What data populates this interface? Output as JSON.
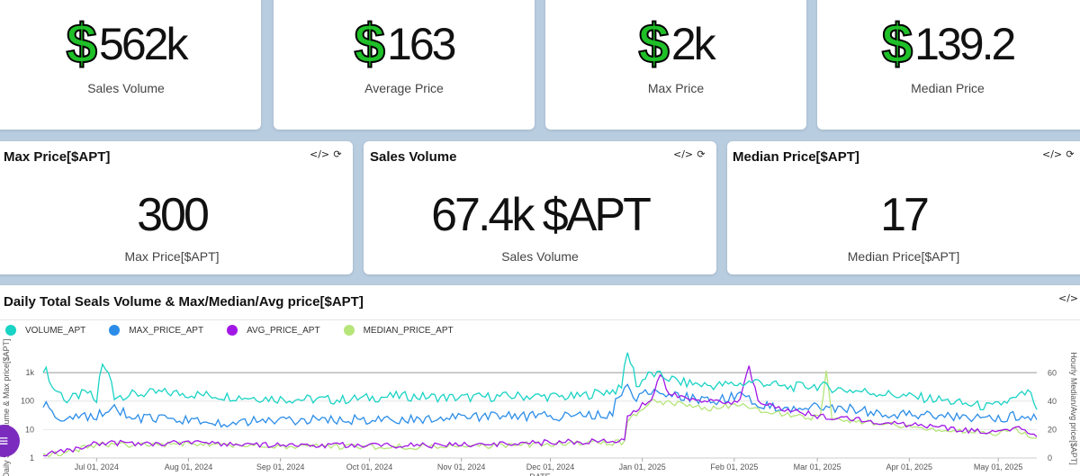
{
  "kpis": [
    {
      "currency": "$",
      "value": "562k",
      "label": "Sales Volume"
    },
    {
      "currency": "$",
      "value": "163",
      "label": "Average Price"
    },
    {
      "currency": "$",
      "value": "2k",
      "label": "Max Price"
    },
    {
      "currency": "$",
      "value": "139.2",
      "label": "Median Price"
    }
  ],
  "cards": [
    {
      "title": "Max Price[$APT]",
      "value": "300",
      "label": "Max Price[$APT]"
    },
    {
      "title": "Sales Volume",
      "value": "67.4k $APT",
      "label": "Sales Volume"
    },
    {
      "title": "Median Price[$APT]",
      "value": "17",
      "label": "Median Price[$APT]"
    }
  ],
  "icons": {
    "code": "</>",
    "refresh": "⟳"
  },
  "colors": {
    "dollar": "#1fbf28",
    "volume": "#19d3c5",
    "max": "#2b8de8",
    "avg": "#a117e6",
    "median": "#b6e57a"
  },
  "chart_data": {
    "type": "line",
    "title": "Daily Total Seals Volume & Max/Median/Avg price[$APT]",
    "xlabel": "DATE",
    "ylabel_left": "Daily Sales Volume & Max price[$APT]",
    "ylabel_right": "Hourly Median/Avg price[$APT]",
    "y_left_scale": "log",
    "y_left_ticks": [
      "1",
      "10",
      "100",
      "1k"
    ],
    "y_left_range": [
      1,
      3000
    ],
    "y_right_ticks": [
      "0",
      "20",
      "40",
      "60"
    ],
    "y_right_range": [
      0,
      70
    ],
    "x_ticks": [
      "Jul 01, 2024",
      "Aug 01, 2024",
      "Sep 01, 2024",
      "Oct 01, 2024",
      "Nov 01, 2024",
      "Dec 01, 2024",
      "Jan 01, 2025",
      "Feb 01, 2025",
      "Mar 01, 2025",
      "Apr 01, 2025",
      "May 01, 2025"
    ],
    "x_range_days": [
      0,
      335
    ],
    "x_tick_days": [
      18,
      49,
      80,
      110,
      141,
      171,
      202,
      233,
      261,
      292,
      322
    ],
    "series": [
      {
        "name": "VOLUME_APT",
        "axis": "left",
        "points": [
          [
            0,
            1500
          ],
          [
            3,
            300
          ],
          [
            8,
            100
          ],
          [
            15,
            200
          ],
          [
            18,
            80
          ],
          [
            20,
            1600
          ],
          [
            24,
            150
          ],
          [
            40,
            200
          ],
          [
            60,
            150
          ],
          [
            80,
            120
          ],
          [
            100,
            110
          ],
          [
            120,
            150
          ],
          [
            140,
            130
          ],
          [
            160,
            150
          ],
          [
            180,
            140
          ],
          [
            195,
            260
          ],
          [
            197,
            4000
          ],
          [
            200,
            300
          ],
          [
            205,
            900
          ],
          [
            215,
            450
          ],
          [
            225,
            350
          ],
          [
            235,
            400
          ],
          [
            240,
            500
          ],
          [
            250,
            300
          ],
          [
            260,
            350
          ],
          [
            270,
            250
          ],
          [
            280,
            200
          ],
          [
            290,
            150
          ],
          [
            300,
            120
          ],
          [
            310,
            80
          ],
          [
            320,
            60
          ],
          [
            328,
            120
          ],
          [
            332,
            200
          ],
          [
            335,
            50
          ]
        ]
      },
      {
        "name": "MAX_PRICE_APT",
        "axis": "left",
        "points": [
          [
            0,
            80
          ],
          [
            3,
            40
          ],
          [
            8,
            20
          ],
          [
            15,
            30
          ],
          [
            18,
            25
          ],
          [
            22,
            60
          ],
          [
            30,
            25
          ],
          [
            60,
            18
          ],
          [
            90,
            22
          ],
          [
            120,
            22
          ],
          [
            150,
            28
          ],
          [
            175,
            30
          ],
          [
            192,
            35
          ],
          [
            197,
            300
          ],
          [
            200,
            120
          ],
          [
            205,
            250
          ],
          [
            215,
            150
          ],
          [
            225,
            100
          ],
          [
            235,
            150
          ],
          [
            240,
            90
          ],
          [
            250,
            50
          ],
          [
            260,
            60
          ],
          [
            270,
            60
          ],
          [
            280,
            40
          ],
          [
            290,
            35
          ],
          [
            300,
            30
          ],
          [
            310,
            25
          ],
          [
            320,
            22
          ],
          [
            328,
            30
          ],
          [
            335,
            22
          ]
        ]
      },
      {
        "name": "AVG_PRICE_APT",
        "axis": "right",
        "points": [
          [
            0,
            3
          ],
          [
            4,
            3
          ],
          [
            8,
            5
          ],
          [
            15,
            9
          ],
          [
            20,
            11
          ],
          [
            30,
            10
          ],
          [
            50,
            11
          ],
          [
            80,
            9
          ],
          [
            110,
            9
          ],
          [
            140,
            9
          ],
          [
            170,
            11
          ],
          [
            196,
            12
          ],
          [
            197,
            28
          ],
          [
            202,
            38
          ],
          [
            205,
            42
          ],
          [
            208,
            60
          ],
          [
            211,
            45
          ],
          [
            220,
            42
          ],
          [
            230,
            38
          ],
          [
            235,
            42
          ],
          [
            238,
            65
          ],
          [
            241,
            40
          ],
          [
            250,
            35
          ],
          [
            255,
            33
          ],
          [
            260,
            30
          ],
          [
            270,
            28
          ],
          [
            280,
            26
          ],
          [
            290,
            24
          ],
          [
            300,
            22
          ],
          [
            310,
            20
          ],
          [
            320,
            18
          ],
          [
            328,
            22
          ],
          [
            335,
            15
          ]
        ]
      },
      {
        "name": "MEDIAN_PRICE_APT",
        "axis": "right",
        "points": [
          [
            0,
            2
          ],
          [
            4,
            3
          ],
          [
            8,
            4
          ],
          [
            15,
            8
          ],
          [
            20,
            10
          ],
          [
            30,
            9
          ],
          [
            50,
            10
          ],
          [
            80,
            8
          ],
          [
            110,
            8
          ],
          [
            140,
            8
          ],
          [
            170,
            10
          ],
          [
            196,
            11
          ],
          [
            197,
            26
          ],
          [
            205,
            40
          ],
          [
            215,
            38
          ],
          [
            225,
            35
          ],
          [
            235,
            38
          ],
          [
            245,
            32
          ],
          [
            255,
            30
          ],
          [
            262,
            28
          ],
          [
            264,
            63
          ],
          [
            266,
            28
          ],
          [
            270,
            27
          ],
          [
            280,
            25
          ],
          [
            290,
            23
          ],
          [
            300,
            21
          ],
          [
            310,
            19
          ],
          [
            320,
            17
          ],
          [
            328,
            20
          ],
          [
            335,
            14
          ]
        ]
      }
    ]
  }
}
